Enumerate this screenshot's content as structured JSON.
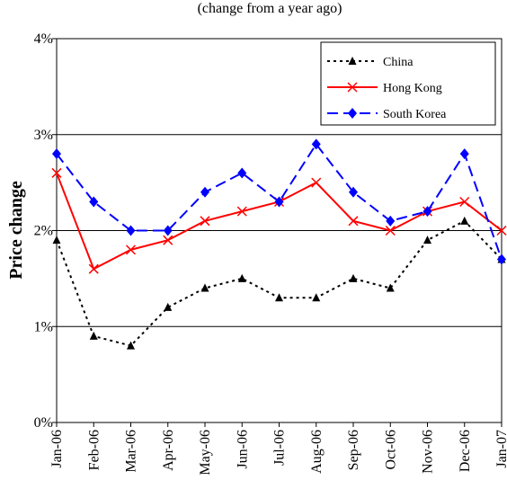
{
  "chart_data": {
    "type": "line",
    "title": "",
    "subtitle": "(change from a year ago)",
    "xlabel": "",
    "ylabel": "Price change",
    "ylim": [
      0,
      4
    ],
    "yticks": [
      0,
      1,
      2,
      3,
      4
    ],
    "ytick_labels": [
      "0%",
      "1%",
      "2%",
      "3%",
      "4%"
    ],
    "grid": "horizontal",
    "legend_position": "top-right",
    "categories": [
      "Jan-06",
      "Feb-06",
      "Mar-06",
      "Apr-06",
      "May-06",
      "Jun-06",
      "Jul-06",
      "Aug-06",
      "Sep-06",
      "Oct-06",
      "Nov-06",
      "Dec-06",
      "Jan-07"
    ],
    "series": [
      {
        "name": "China",
        "color": "#000000",
        "marker": "triangle",
        "line_style": "dotted",
        "values": [
          1.9,
          0.9,
          0.8,
          1.2,
          1.4,
          1.5,
          1.3,
          1.3,
          1.5,
          1.4,
          1.9,
          2.1,
          1.7
        ]
      },
      {
        "name": "Hong Kong",
        "color": "#ff0000",
        "marker": "x",
        "line_style": "solid",
        "values": [
          2.6,
          1.6,
          1.8,
          1.9,
          2.1,
          2.2,
          2.3,
          2.5,
          2.1,
          2.0,
          2.2,
          2.3,
          2.0
        ]
      },
      {
        "name": "South Korea",
        "color": "#0000ff",
        "marker": "diamond",
        "line_style": "dashed",
        "values": [
          2.8,
          2.3,
          2.0,
          2.0,
          2.4,
          2.6,
          2.3,
          2.9,
          2.4,
          2.1,
          2.2,
          2.8,
          1.7
        ]
      }
    ]
  }
}
